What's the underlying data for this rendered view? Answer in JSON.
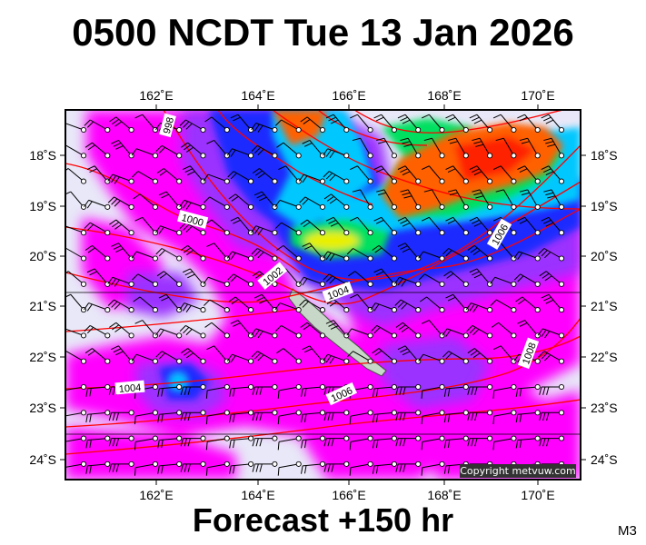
{
  "title": "0500 NCDT Tue 13 Jan 2026",
  "forecast_label": "Forecast +150 hr",
  "model_code": "M3",
  "copyright": "Copyright metvuw.com",
  "lon_labels": [
    "162˚E",
    "164˚E",
    "166˚E",
    "168˚E",
    "170˚E"
  ],
  "lat_labels": [
    "18˚S",
    "19˚S",
    "20˚S",
    "21˚S",
    "22˚S",
    "23˚S",
    "24˚S"
  ],
  "isobar_labels": [
    "998",
    "1000",
    "1002",
    "1004",
    "1006",
    "1006",
    "1008",
    "1004"
  ],
  "colors": {
    "frame": "#000000",
    "isobar": "#ff0000",
    "background": "#e8e8f8",
    "magenta": "#ff00ff",
    "violet": "#9b30ff",
    "blue": "#1a2bff",
    "cyan": "#00c8ff",
    "green": "#00e060",
    "yellow": "#e8f000",
    "orange": "#ff6000",
    "red": "#ff2000"
  }
}
